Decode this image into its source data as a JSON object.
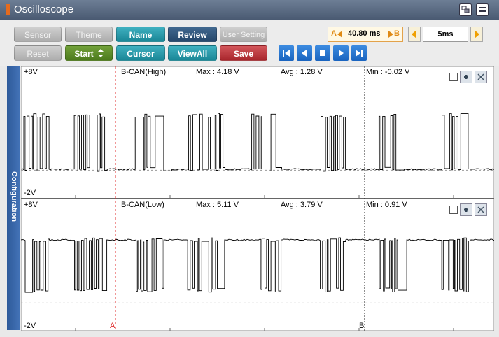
{
  "window": {
    "title": "Oscilloscope"
  },
  "toolbar": {
    "row1": [
      "Sensor",
      "Theme",
      "Name",
      "Review",
      "User Setting"
    ],
    "row2": [
      "Reset",
      "Start",
      "Cursor",
      "ViewAll",
      "Save"
    ]
  },
  "readout": {
    "marker_a": "A",
    "time": "40.80 ms",
    "marker_b": "B",
    "timebase": "5ms"
  },
  "side_tab": "Configuration",
  "channels": [
    {
      "top": "+8V",
      "bottom": "-2V",
      "name": "B-CAN(High)",
      "max": "Max : 4.18 V",
      "avg": "Avg : 1.28 V",
      "min": "Min : -0.02 V"
    },
    {
      "top": "+8V",
      "bottom": "-2V",
      "name": "B-CAN(Low)",
      "max": "Max : 5.11 V",
      "avg": "Avg : 3.79 V",
      "min": "Min : 0.91 V"
    }
  ],
  "cursors": {
    "a": "A",
    "b": "B"
  }
}
